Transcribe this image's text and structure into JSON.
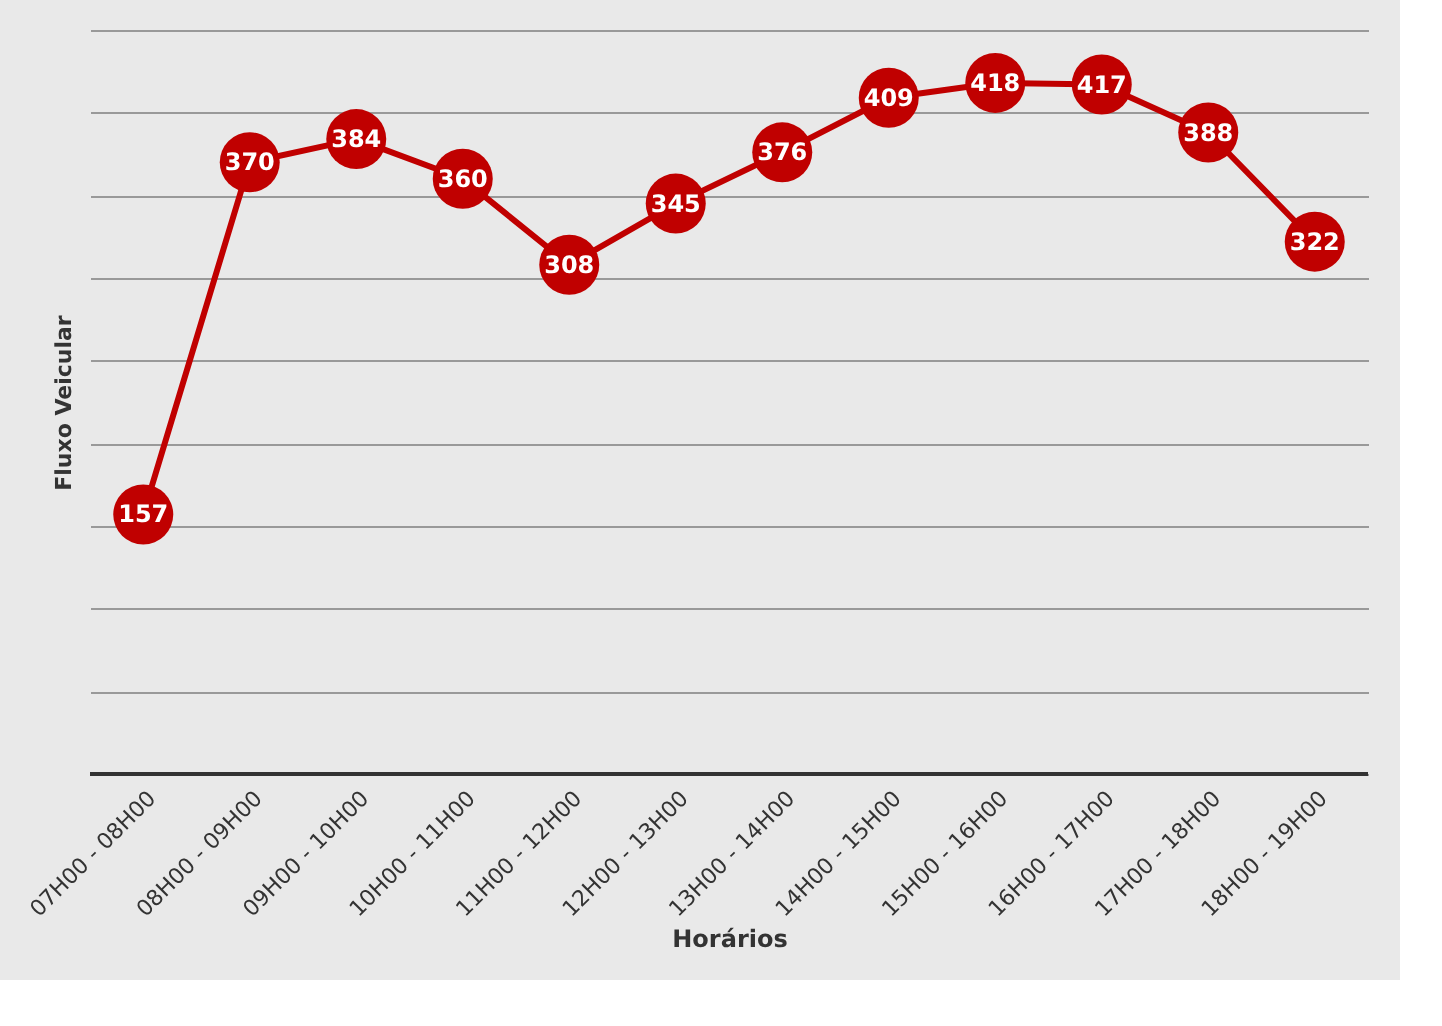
{
  "chart_data": {
    "type": "line",
    "xlabel": "Horários",
    "ylabel": "Fluxo Veicular",
    "categories": [
      "07H00 - 08H00",
      "08H00 - 09H00",
      "09H00 - 10H00",
      "10H00 - 11H00",
      "11H00 - 12H00",
      "12H00 - 13H00",
      "13H00 - 14H00",
      "14H00 - 15H00",
      "15H00 - 16H00",
      "16H00 - 17H00",
      "17H00 - 18H00",
      "18H00 - 19H00"
    ],
    "series": [
      {
        "color": "#c00000",
        "values": [
          157,
          370,
          384,
          360,
          308,
          345,
          376,
          409,
          418,
          417,
          388,
          322
        ]
      }
    ],
    "grid": "y",
    "tick_labels": "x",
    "marker": "circle",
    "line_style": "solid",
    "data_labels": true
  }
}
